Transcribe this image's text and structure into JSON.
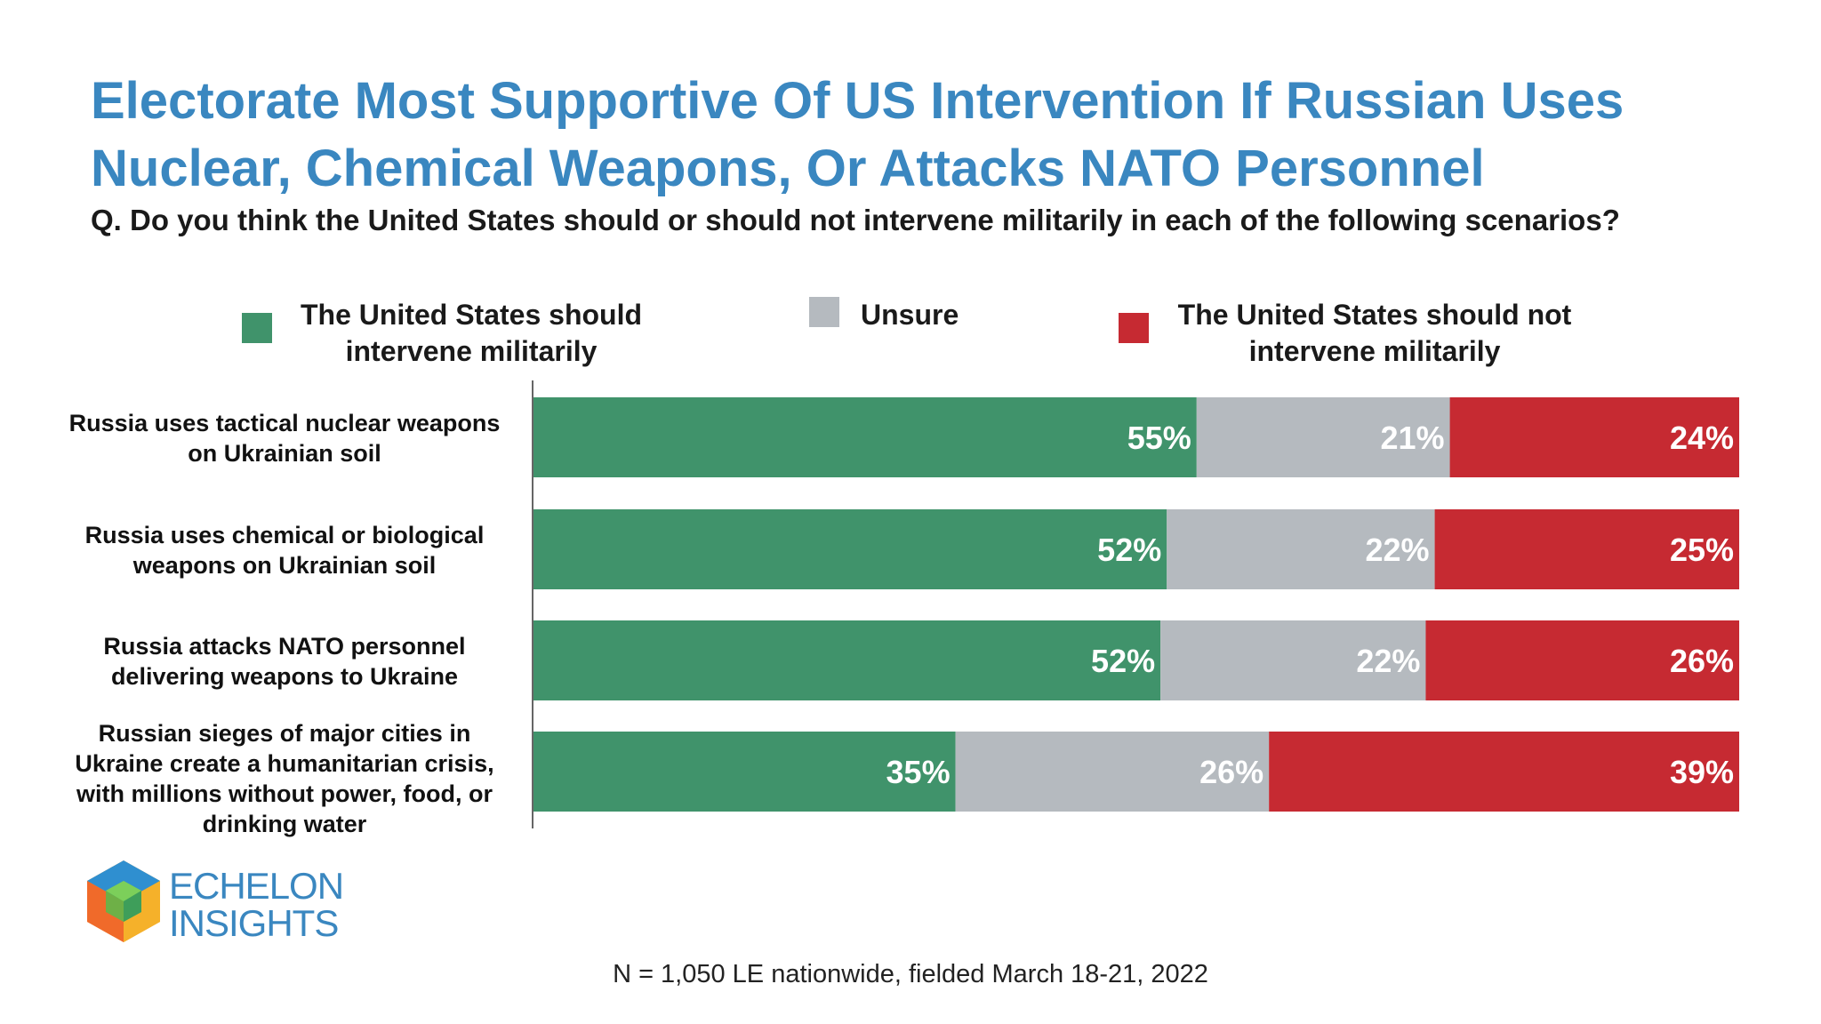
{
  "title": "Electorate Most Supportive Of US Intervention If Russian Uses Nuclear, Chemical Weapons, Or Attacks NATO Personnel",
  "question": "Q. Do you think the United States should or should not intervene militarily in each of the following scenarios?",
  "legend": [
    {
      "label": "The United States should intervene militarily",
      "color": "#40936b"
    },
    {
      "label": "Unsure",
      "color": "#b5babf"
    },
    {
      "label": "The United States should not intervene militarily",
      "color": "#c62a32"
    }
  ],
  "chart_data": {
    "type": "bar",
    "orientation": "horizontal",
    "stacked": true,
    "categories": [
      "Russia uses tactical nuclear weapons on Ukrainian soil",
      "Russia uses chemical or biological weapons on Ukrainian soil",
      "Russia attacks NATO personnel delivering weapons to Ukraine",
      "Russian sieges of major cities in Ukraine create a humanitarian crisis, with millions without power, food, or drinking water"
    ],
    "series": [
      {
        "name": "The United States should intervene militarily",
        "color": "#40936b",
        "values": [
          55,
          52,
          52,
          35
        ]
      },
      {
        "name": "Unsure",
        "color": "#b5babf",
        "values": [
          21,
          22,
          22,
          26
        ]
      },
      {
        "name": "The United States should not intervene militarily",
        "color": "#c62a32",
        "values": [
          24,
          25,
          26,
          39
        ]
      }
    ],
    "value_suffix": "%",
    "title": "Electorate Most Supportive Of US Intervention If Russian Uses Nuclear, Chemical Weapons, Or Attacks NATO Personnel",
    "xlabel": "",
    "ylabel": ""
  },
  "brand": {
    "line1": "ECHELON",
    "line2": "INSIGHTS"
  },
  "footnote": "N = 1,050 LE nationwide, fielded March 18-21, 2022"
}
